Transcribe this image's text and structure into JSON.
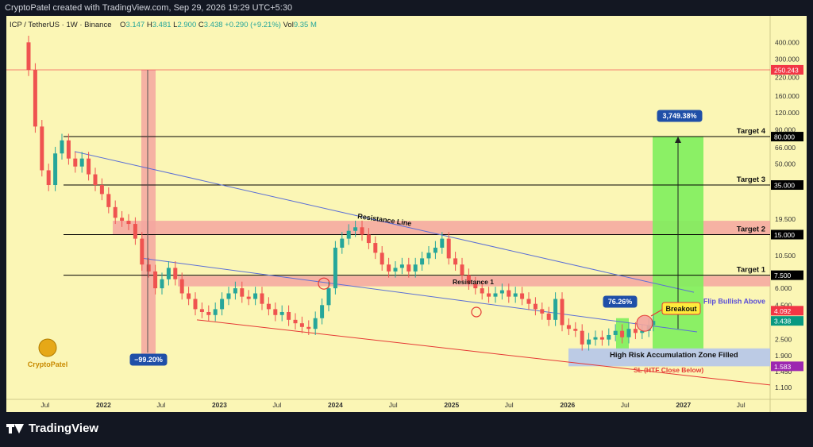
{
  "header": {
    "attribution": "CryptoPatel created with TradingView.com, Sep 29, 2026 19:29 UTC+5:30"
  },
  "symbol": {
    "name": "ICP / TetherUS · 1W · Binance",
    "open_label": "O",
    "open": "3.147",
    "high_label": "H",
    "high": "3.481",
    "low_label": "L",
    "low": "2.900",
    "close_label": "C",
    "close": "3.438",
    "change": "+0.290 (+9.21%)",
    "vol_label": "Vol",
    "vol": "9.35 M"
  },
  "footer": {
    "brand": "TradingView"
  },
  "watermark": {
    "text": "CryptoPatel"
  },
  "colors": {
    "background": "#fbf6b5",
    "candle_up": "#26a69a",
    "candle_down": "#ef5350",
    "zone_red": "#f4a6a0",
    "zone_green": "#7ef05c",
    "zone_blue": "#b8c8e8",
    "line_blue": "#5b6fd6"
  },
  "chart_data": {
    "type": "candlestick",
    "title": "",
    "log_scale": true,
    "ylim": [
      0.9,
      520
    ],
    "x_tick_labels": [
      "Jul",
      "2022",
      "Jul",
      "2023",
      "Jul",
      "2024",
      "Jul",
      "2025",
      "Jul",
      "2026",
      "Jul",
      "2027",
      "Jul"
    ],
    "y_tick_labels": [
      "400.000",
      "300.000",
      "220.000",
      "160.000",
      "120.000",
      "90.000",
      "66.000",
      "50.000",
      "35.000",
      "19.500",
      "15.000",
      "10.500",
      "7.500",
      "6.000",
      "4.500",
      "3.500",
      "2.500",
      "1.900",
      "1.450",
      "1.100"
    ],
    "y_ticks": [
      400,
      300,
      220,
      160,
      120,
      90,
      66,
      50,
      35,
      19.5,
      15,
      10.5,
      7.5,
      6,
      4.5,
      3.5,
      2.5,
      1.9,
      1.45,
      1.1
    ],
    "price_markers": [
      {
        "label": "250.243",
        "value": 250.243,
        "color": "#f23645"
      },
      {
        "label": "80.000",
        "value": 80,
        "color": "#000000"
      },
      {
        "label": "35.000",
        "value": 35,
        "color": "#000000"
      },
      {
        "label": "15.000",
        "value": 15,
        "color": "#000000"
      },
      {
        "label": "7.500",
        "value": 7.5,
        "color": "#000000"
      },
      {
        "label": "4.092",
        "value": 4.092,
        "color": "#f23645"
      },
      {
        "label": "3.438",
        "value": 3.438,
        "color": "#089981"
      },
      {
        "label": "1.583",
        "value": 1.583,
        "color": "#9c27b0"
      }
    ],
    "targets": [
      {
        "label": "Target 4",
        "value": 80
      },
      {
        "label": "Target 3",
        "value": 35
      },
      {
        "label": "Target 2",
        "value": 15
      },
      {
        "label": "Target 1",
        "value": 7.5
      }
    ],
    "annotations": {
      "resistance_line": "Resistance Line",
      "resistance_1": "Resistance 1",
      "breakout": "Breakout",
      "flip_bullish": "Flip Bullish Above",
      "accumulation": "High Risk Accumulation Zone Filled",
      "stop_loss": "SL (HTF Close Below)",
      "drop_pct": "−99.20%",
      "rise_pct_small": "76.26%",
      "rise_pct_big": "3,749.38%"
    },
    "series": [
      {
        "name": "",
        "x": [
          "2021-05-10",
          "2021-05-31",
          "2021-06-21",
          "2021-07-12",
          "2021-08-02",
          "2021-08-23",
          "2021-09-13",
          "2021-10-04",
          "2021-10-25",
          "2021-11-15",
          "2021-12-06",
          "2021-12-27",
          "2022-01-17",
          "2022-02-07",
          "2022-02-28",
          "2022-03-21",
          "2022-04-11",
          "2022-05-02",
          "2022-05-23",
          "2022-06-13",
          "2022-07-04",
          "2022-07-25",
          "2022-08-15",
          "2022-09-05",
          "2022-09-26",
          "2022-10-17",
          "2022-11-07",
          "2022-11-28",
          "2022-12-19",
          "2023-01-09",
          "2023-01-30",
          "2023-02-20",
          "2023-03-13",
          "2023-04-03",
          "2023-04-24",
          "2023-05-15",
          "2023-06-05",
          "2023-06-26",
          "2023-07-17",
          "2023-08-07",
          "2023-08-28",
          "2023-09-18",
          "2023-10-09",
          "2023-10-30",
          "2023-11-20",
          "2023-12-11",
          "2024-01-01",
          "2024-01-22",
          "2024-02-12",
          "2024-03-04",
          "2024-03-25",
          "2024-04-15",
          "2024-05-06",
          "2024-05-27",
          "2024-06-17",
          "2024-07-08",
          "2024-07-29",
          "2024-08-19",
          "2024-09-09",
          "2024-09-30",
          "2024-10-21",
          "2024-11-11",
          "2024-12-02",
          "2024-12-23",
          "2025-01-13",
          "2025-02-03",
          "2025-02-24",
          "2025-03-17",
          "2025-04-07",
          "2025-04-28",
          "2025-05-19",
          "2025-06-09",
          "2025-06-30",
          "2025-07-21",
          "2025-08-11",
          "2025-09-01",
          "2025-09-22",
          "2025-10-13",
          "2025-11-03",
          "2025-11-24",
          "2025-12-15",
          "2026-01-05",
          "2026-01-26",
          "2026-02-16",
          "2026-03-09",
          "2026-03-30",
          "2026-04-20",
          "2026-05-11",
          "2026-06-01",
          "2026-06-22",
          "2026-07-13",
          "2026-08-03",
          "2026-08-24",
          "2026-09-14",
          "2026-09-28"
        ],
        "close": [
          250,
          95,
          45,
          35,
          60,
          75,
          55,
          48,
          55,
          42,
          35,
          30,
          24,
          20,
          19,
          18,
          14,
          9,
          8,
          6,
          7,
          8.5,
          7,
          5.5,
          5,
          4.2,
          4,
          3.8,
          4.2,
          5,
          5.5,
          6,
          5.2,
          5,
          5.5,
          4.6,
          4.2,
          3.8,
          4,
          3.5,
          3.3,
          3.1,
          3,
          3.6,
          4.5,
          6,
          12,
          14,
          16,
          17,
          15,
          13,
          11,
          9,
          8,
          8.5,
          9,
          8,
          9,
          10,
          11,
          12,
          14,
          10,
          9,
          7.5,
          6.5,
          6,
          5.5,
          5.2,
          5.5,
          5.8,
          5.2,
          5.5,
          5,
          4.6,
          4.2,
          3.9,
          3.5,
          5.0,
          3.2,
          3.0,
          2.9,
          2.3,
          2.5,
          2.6,
          2.5,
          2.7,
          2.9,
          2.6,
          3.0,
          2.8,
          2.9,
          3.2,
          3.438
        ]
      }
    ]
  }
}
